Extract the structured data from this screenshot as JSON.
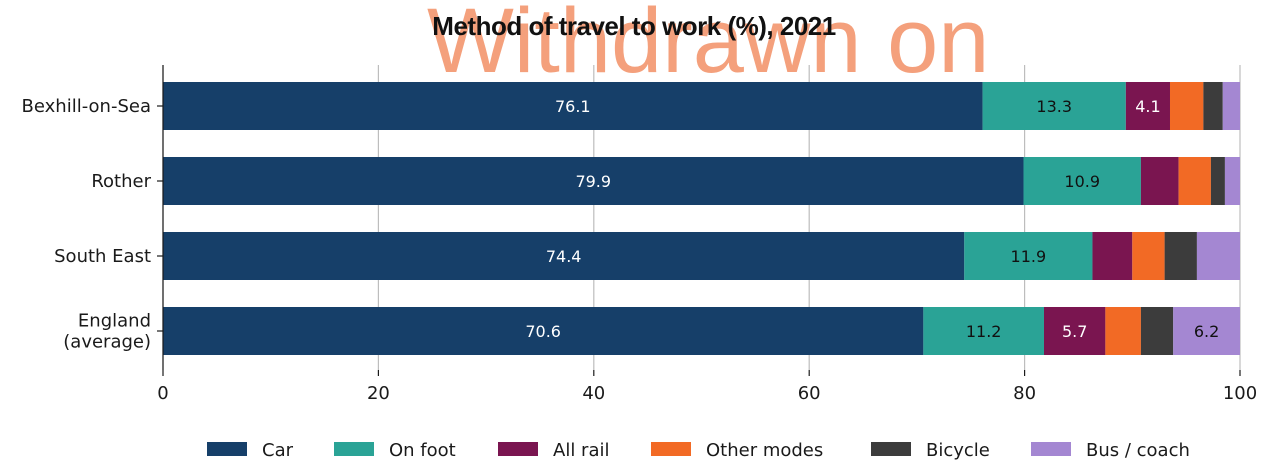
{
  "chart_data": {
    "type": "bar",
    "orientation": "horizontal",
    "stacked": true,
    "title": "Method of travel to work (%), 2021",
    "watermark": "Withdrawn on",
    "categories": [
      [
        "Bexhill-on-Sea"
      ],
      [
        "Rother"
      ],
      [
        "South East"
      ],
      [
        "England",
        "(average)"
      ]
    ],
    "xlim": [
      0,
      100
    ],
    "xticks": [
      0,
      20,
      40,
      60,
      80,
      100
    ],
    "grid": "vertical",
    "legend_position": "bottom",
    "series": [
      {
        "name": "Car",
        "color": "#163f69",
        "label_color": "#ffffff",
        "values": [
          76.1,
          79.9,
          74.4,
          70.6
        ],
        "labels": [
          "76.1",
          "79.9",
          "74.4",
          "70.6"
        ]
      },
      {
        "name": "On foot",
        "color": "#2aa396",
        "label_color": "#111111",
        "values": [
          13.3,
          10.9,
          11.9,
          11.2
        ],
        "labels": [
          "13.3",
          "10.9",
          "11.9",
          "11.2"
        ]
      },
      {
        "name": "All rail",
        "color": "#7a1550",
        "label_color": "#ffffff",
        "values": [
          4.1,
          3.5,
          3.7,
          5.7
        ],
        "labels": [
          "4.1",
          "",
          "",
          "5.7"
        ]
      },
      {
        "name": "Other modes",
        "color": "#f26a25",
        "label_color": "#111111",
        "values": [
          3.1,
          3.0,
          3.0,
          3.3
        ],
        "labels": [
          "",
          "",
          "",
          ""
        ]
      },
      {
        "name": "Bicycle",
        "color": "#3c3c3c",
        "label_color": "#ffffff",
        "values": [
          1.8,
          1.3,
          3.0,
          3.0
        ],
        "labels": [
          "",
          "",
          "",
          ""
        ]
      },
      {
        "name": "Bus / coach",
        "color": "#a487d2",
        "label_color": "#111111",
        "values": [
          1.6,
          1.4,
          4.0,
          6.2
        ],
        "labels": [
          "",
          "",
          "",
          "6.2"
        ]
      }
    ]
  }
}
